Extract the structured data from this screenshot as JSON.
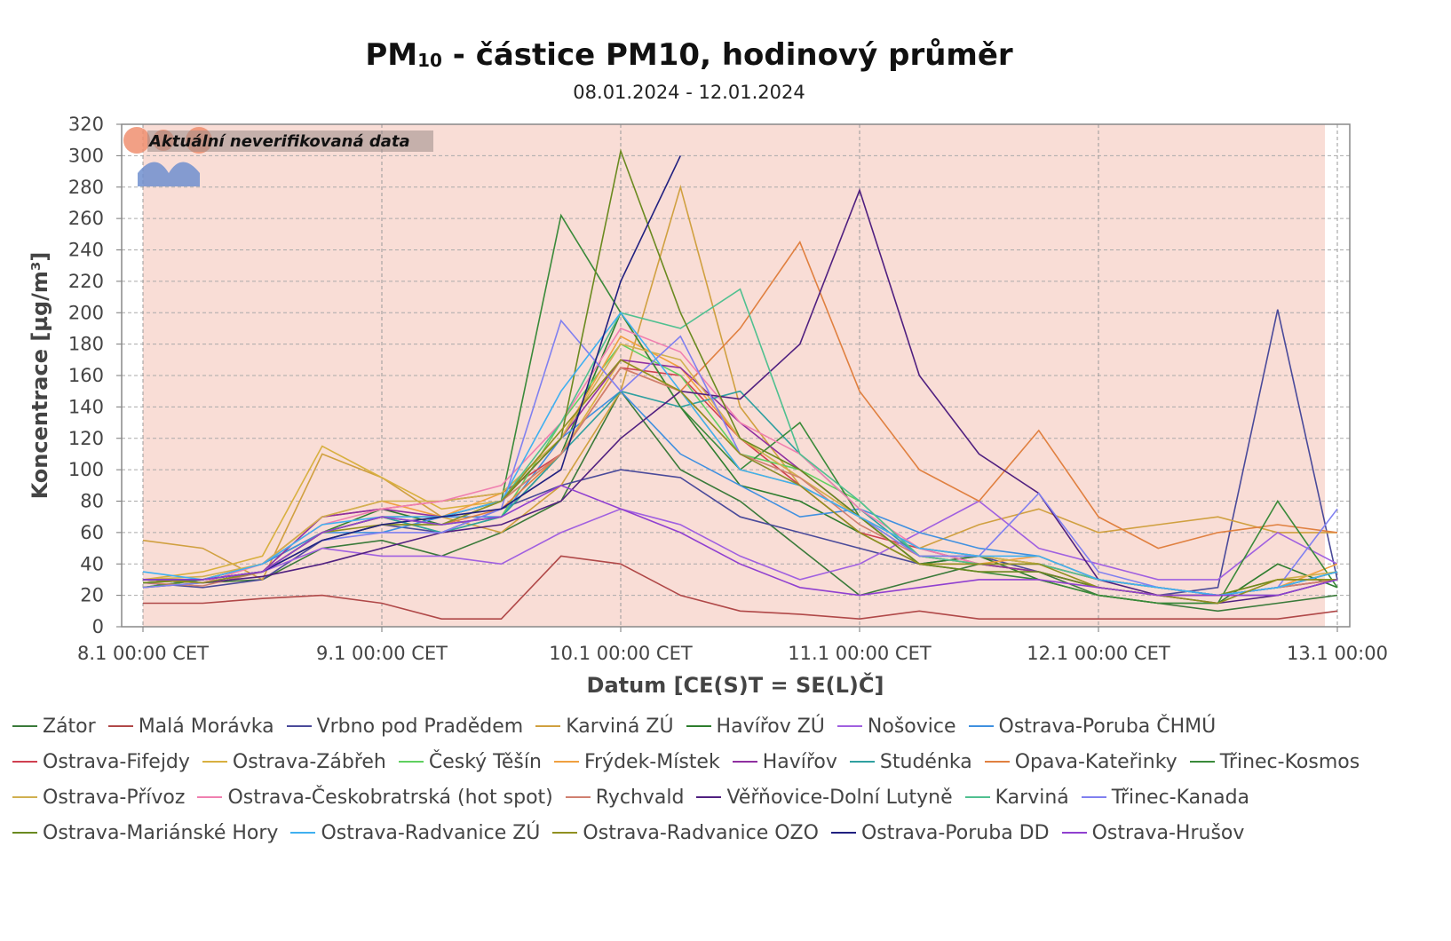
{
  "chart_data": {
    "type": "line",
    "title_main": "PM",
    "title_subscript": "10",
    "title_rest": " - částice PM10, hodinový průměr",
    "subtitle": "08.01.2024 - 12.01.2024",
    "xlabel": "Datum [CE(S)T = SE(L)Č]",
    "ylabel": "Koncentrace [µg/m³]",
    "watermark": "Aktuální neverifikovaná data",
    "ylim": [
      0,
      320
    ],
    "yticks": [
      0,
      20,
      40,
      60,
      80,
      100,
      120,
      140,
      160,
      180,
      200,
      220,
      240,
      260,
      280,
      300,
      320
    ],
    "xlim_hours": [
      0,
      120
    ],
    "xticks": [
      {
        "hour": 0,
        "label": "8.1 00:00 CET"
      },
      {
        "hour": 24,
        "label": "9.1 00:00 CET"
      },
      {
        "hour": 48,
        "label": "10.1 00:00 CET"
      },
      {
        "hour": 72,
        "label": "11.1 00:00 CET"
      },
      {
        "hour": 96,
        "label": "12.1 00:00 CET"
      },
      {
        "hour": 120,
        "label": "13.1 00:00"
      }
    ],
    "grid": true,
    "legend_position": "bottom",
    "background_color": "#f9ddd6",
    "x_hours": [
      0,
      6,
      12,
      18,
      24,
      30,
      36,
      42,
      48,
      54,
      60,
      66,
      72,
      78,
      84,
      90,
      96,
      102,
      108,
      114,
      120
    ],
    "series": [
      {
        "name": "Zátor",
        "color": "#3a7a3a",
        "values": [
          25,
          28,
          30,
          50,
          55,
          45,
          60,
          80,
          150,
          100,
          80,
          50,
          20,
          30,
          40,
          35,
          20,
          15,
          10,
          15,
          20
        ]
      },
      {
        "name": "Malá Morávka",
        "color": "#b04848",
        "values": [
          15,
          15,
          18,
          20,
          15,
          5,
          5,
          45,
          40,
          20,
          10,
          8,
          5,
          10,
          5,
          5,
          5,
          5,
          5,
          5,
          10
        ]
      },
      {
        "name": "Vrbno pod Pradědem",
        "color": "#4a4a9a",
        "values": [
          28,
          25,
          30,
          55,
          65,
          60,
          75,
          90,
          100,
          95,
          70,
          60,
          50,
          40,
          45,
          35,
          25,
          20,
          25,
          202,
          30
        ]
      },
      {
        "name": "Karviná ZÚ",
        "color": "#d0a040",
        "values": [
          55,
          50,
          30,
          110,
          95,
          70,
          60,
          90,
          150,
          280,
          140,
          90,
          70,
          50,
          65,
          75,
          60,
          65,
          70,
          60,
          60
        ]
      },
      {
        "name": "Havířov ZÚ",
        "color": "#2e7d2e",
        "values": [
          30,
          30,
          40,
          60,
          75,
          65,
          70,
          110,
          200,
          140,
          90,
          80,
          60,
          40,
          45,
          30,
          20,
          15,
          15,
          40,
          25
        ]
      },
      {
        "name": "Nošovice",
        "color": "#a060e0",
        "values": [
          25,
          30,
          35,
          50,
          45,
          45,
          40,
          60,
          75,
          65,
          45,
          30,
          40,
          60,
          80,
          50,
          40,
          30,
          30,
          60,
          40
        ]
      },
      {
        "name": "Ostrava-Poruba ČHMÚ",
        "color": "#4090e0",
        "values": [
          30,
          30,
          40,
          60,
          60,
          70,
          70,
          120,
          150,
          110,
          90,
          70,
          75,
          60,
          50,
          45,
          30,
          25,
          20,
          25,
          30
        ]
      },
      {
        "name": "Ostrava-Fifejdy",
        "color": "#d04050",
        "values": [
          28,
          30,
          40,
          70,
          75,
          80,
          85,
          110,
          165,
          160,
          120,
          90,
          60,
          50,
          45,
          40,
          30,
          25,
          20,
          25,
          30
        ]
      },
      {
        "name": "Ostrava-Zábřeh",
        "color": "#d8b040",
        "values": [
          30,
          35,
          45,
          115,
          95,
          75,
          80,
          110,
          170,
          150,
          100,
          90,
          70,
          45,
          40,
          35,
          25,
          20,
          20,
          30,
          30
        ]
      },
      {
        "name": "Český Těšín",
        "color": "#60d060",
        "values": [
          25,
          30,
          35,
          60,
          70,
          60,
          70,
          130,
          180,
          160,
          110,
          100,
          80,
          45,
          45,
          40,
          30,
          25,
          20,
          25,
          35
        ]
      },
      {
        "name": "Frýdek-Místek",
        "color": "#f0a040",
        "values": [
          30,
          30,
          40,
          70,
          80,
          70,
          85,
          120,
          185,
          165,
          120,
          95,
          70,
          40,
          40,
          45,
          30,
          25,
          20,
          25,
          40
        ]
      },
      {
        "name": "Havířov",
        "color": "#9030a0",
        "values": [
          30,
          28,
          35,
          70,
          75,
          70,
          80,
          120,
          170,
          165,
          130,
          100,
          70,
          50,
          40,
          35,
          25,
          20,
          20,
          25,
          35
        ]
      },
      {
        "name": "Studénka",
        "color": "#30a0a0",
        "values": [
          30,
          28,
          35,
          60,
          70,
          60,
          70,
          110,
          150,
          140,
          150,
          110,
          75,
          45,
          40,
          40,
          30,
          25,
          20,
          20,
          30
        ]
      },
      {
        "name": "Opava-Kateřinky",
        "color": "#e08040",
        "values": [
          30,
          28,
          35,
          60,
          70,
          65,
          75,
          110,
          165,
          150,
          190,
          245,
          150,
          100,
          80,
          125,
          70,
          50,
          60,
          65,
          60
        ]
      },
      {
        "name": "Třinec-Kosmos",
        "color": "#3a8a3a",
        "values": [
          25,
          30,
          35,
          55,
          65,
          65,
          80,
          262,
          200,
          140,
          100,
          130,
          70,
          40,
          35,
          30,
          20,
          15,
          15,
          80,
          25
        ]
      },
      {
        "name": "Ostrava-Přívoz",
        "color": "#d0b050",
        "values": [
          30,
          32,
          40,
          70,
          80,
          80,
          85,
          120,
          180,
          170,
          120,
          95,
          70,
          50,
          45,
          40,
          30,
          25,
          20,
          30,
          35
        ]
      },
      {
        "name": "Ostrava-Českobratrská (hot spot)",
        "color": "#f080b0",
        "values": [
          30,
          28,
          40,
          65,
          75,
          80,
          90,
          130,
          190,
          175,
          130,
          110,
          75,
          50,
          40,
          40,
          30,
          25,
          20,
          25,
          35
        ]
      },
      {
        "name": "Rychvald",
        "color": "#d08070",
        "values": [
          28,
          26,
          35,
          60,
          70,
          70,
          80,
          110,
          165,
          150,
          110,
          95,
          65,
          45,
          40,
          40,
          30,
          25,
          20,
          25,
          30
        ]
      },
      {
        "name": "Věřňovice-Dolní Lutyně",
        "color": "#502080",
        "values": [
          30,
          28,
          32,
          40,
          50,
          60,
          65,
          80,
          120,
          150,
          145,
          180,
          278,
          160,
          110,
          85,
          30,
          20,
          15,
          20,
          30
        ]
      },
      {
        "name": "Karviná",
        "color": "#50c090",
        "values": [
          28,
          30,
          35,
          60,
          70,
          65,
          80,
          130,
          200,
          190,
          215,
          110,
          80,
          45,
          40,
          40,
          30,
          25,
          20,
          25,
          35
        ]
      },
      {
        "name": "Třinec-Kanada",
        "color": "#8080f0",
        "values": [
          25,
          28,
          35,
          55,
          60,
          60,
          75,
          195,
          150,
          185,
          110,
          90,
          70,
          45,
          45,
          85,
          35,
          25,
          20,
          25,
          75
        ]
      },
      {
        "name": "Ostrava-Mariánské Hory",
        "color": "#6a8a20",
        "values": [
          28,
          30,
          35,
          60,
          70,
          70,
          80,
          120,
          303,
          200,
          120,
          100,
          70,
          40,
          35,
          35,
          25,
          20,
          20,
          30,
          30
        ]
      },
      {
        "name": "Ostrava-Radvanice ZÚ",
        "color": "#40b0f0",
        "values": [
          35,
          30,
          40,
          65,
          70,
          70,
          80,
          150,
          200,
          150,
          100,
          90,
          70,
          50,
          45,
          45,
          30,
          25,
          20,
          25,
          35
        ]
      },
      {
        "name": "Ostrava-Radvanice OZO",
        "color": "#909020",
        "values": [
          30,
          28,
          35,
          60,
          65,
          65,
          80,
          125,
          170,
          150,
          110,
          90,
          60,
          40,
          40,
          40,
          25,
          20,
          15,
          30,
          30
        ]
      },
      {
        "name": "Ostrava-Poruba DD",
        "color": "#202080",
        "values": [
          30,
          30,
          35,
          55,
          65,
          70,
          75,
          100,
          220,
          300,
          null,
          null,
          null,
          null,
          null,
          null,
          null,
          null,
          null,
          null,
          null
        ]
      },
      {
        "name": "Ostrava-Hrušov",
        "color": "#9040d0",
        "values": [
          30,
          30,
          35,
          60,
          70,
          65,
          70,
          90,
          75,
          60,
          40,
          25,
          20,
          25,
          30,
          30,
          25,
          20,
          20,
          20,
          30
        ]
      }
    ]
  }
}
